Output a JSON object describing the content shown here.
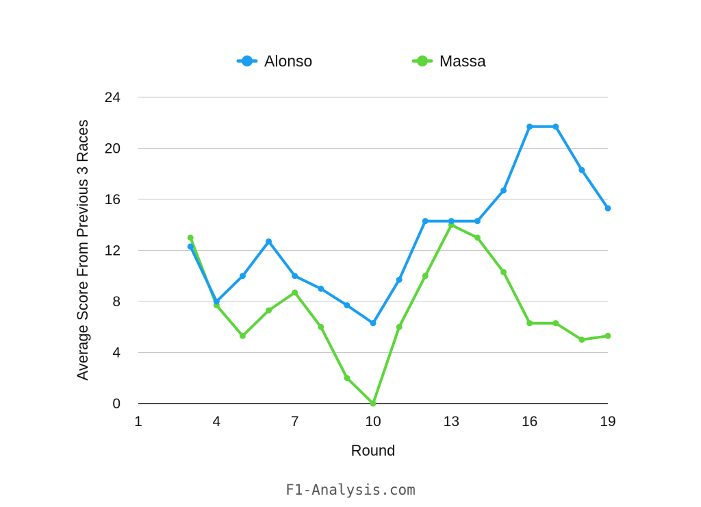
{
  "chart_data": {
    "type": "line",
    "xlabel": "Round",
    "ylabel": "Average Score From Previous 3 Races",
    "xlim": [
      1,
      19
    ],
    "ylim": [
      0,
      24
    ],
    "x_ticks": [
      1,
      4,
      7,
      10,
      13,
      16,
      19
    ],
    "y_ticks": [
      0,
      4,
      8,
      12,
      16,
      20,
      24
    ],
    "grid": "horizontal",
    "legend_position": "top-center",
    "series": [
      {
        "name": "Alonso",
        "color": "#1a9ef0",
        "x": [
          3,
          4,
          5,
          6,
          7,
          8,
          9,
          10,
          11,
          12,
          13,
          14,
          15,
          16,
          17,
          18,
          19
        ],
        "values": [
          12.3,
          8.0,
          10.0,
          12.7,
          10.0,
          9.0,
          7.7,
          6.3,
          9.7,
          14.3,
          14.3,
          14.3,
          16.7,
          21.7,
          21.7,
          18.3,
          15.3
        ]
      },
      {
        "name": "Massa",
        "color": "#5dd53b",
        "x": [
          3,
          4,
          5,
          6,
          7,
          8,
          9,
          10,
          11,
          12,
          13,
          14,
          15,
          16,
          17,
          18,
          19
        ],
        "values": [
          13.0,
          7.7,
          5.3,
          7.3,
          8.7,
          6.0,
          2.0,
          0.0,
          6.0,
          10.0,
          14.0,
          13.0,
          10.3,
          6.3,
          6.3,
          5.0,
          5.3
        ]
      }
    ]
  },
  "watermark": "F1-Analysis.com"
}
